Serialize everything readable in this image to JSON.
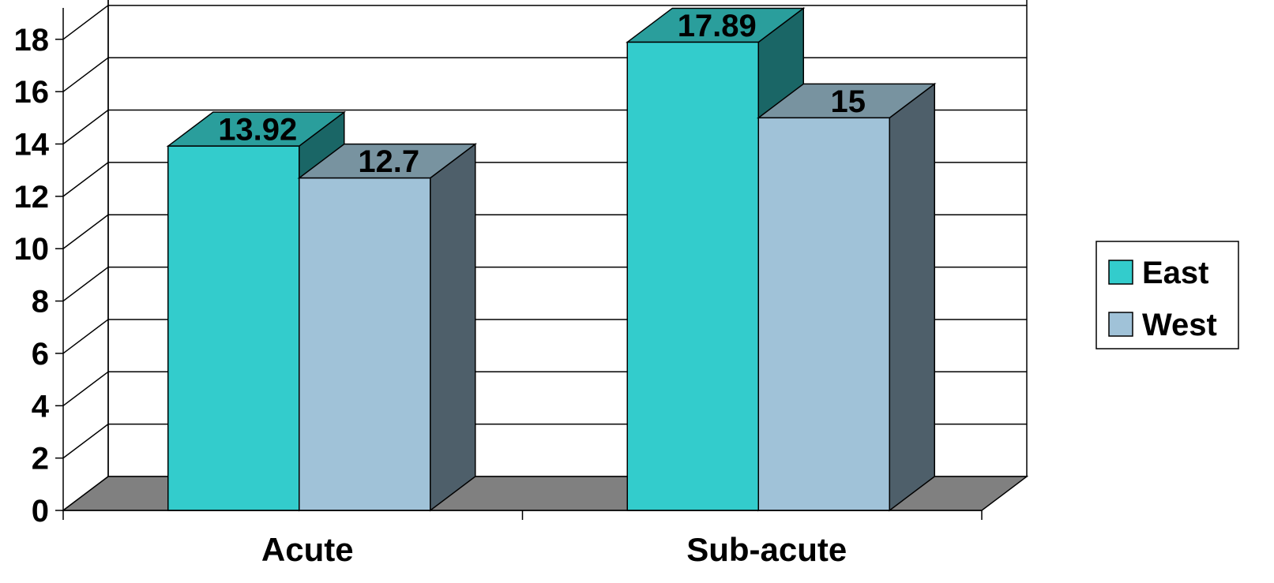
{
  "chart_data": {
    "type": "bar",
    "style": "3d-clustered",
    "categories": [
      "Acute",
      "Sub-acute"
    ],
    "series": [
      {
        "name": "East",
        "values": [
          13.92,
          17.89
        ],
        "color": "#33CCCC",
        "top_color": "#2A9E9C",
        "side_color": "#1A6666"
      },
      {
        "name": "West",
        "values": [
          12.7,
          15
        ],
        "color": "#A0C2D8",
        "top_color": "#7893A0",
        "side_color": "#4E5F6A"
      }
    ],
    "data_labels": [
      [
        "13.92",
        "17.89"
      ],
      [
        "12.7",
        "15"
      ]
    ],
    "yticks": [
      0,
      2,
      4,
      6,
      8,
      10,
      12,
      14,
      16,
      18
    ],
    "ylim": [
      0,
      19.2
    ],
    "grid": true,
    "floor_color": "#808080",
    "legend_position": "right",
    "title": "",
    "xlabel": "",
    "ylabel": ""
  }
}
